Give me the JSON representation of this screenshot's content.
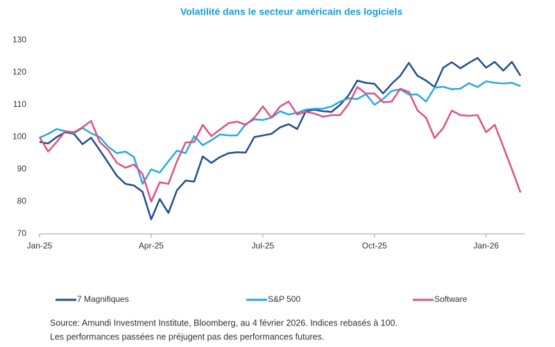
{
  "chart_data": {
    "type": "line",
    "title": "Volatilité dans le secteur américain des logiciels",
    "categories": [
      "Jan-25",
      null,
      null,
      null,
      null,
      null,
      null,
      null,
      null,
      null,
      null,
      null,
      null,
      "Apr-25",
      null,
      null,
      null,
      null,
      null,
      null,
      null,
      null,
      null,
      null,
      null,
      null,
      "Jul-25",
      null,
      null,
      null,
      null,
      null,
      null,
      null,
      null,
      null,
      null,
      null,
      null,
      "Oct-25",
      null,
      null,
      null,
      null,
      null,
      null,
      null,
      null,
      null,
      null,
      null,
      null,
      "Jan-26",
      null,
      null,
      null,
      null
    ],
    "series": [
      {
        "name": "7 Magnifiques",
        "color": "#1f4e8c",
        "values": [
          98.5,
          98,
          100,
          101.5,
          101,
          97.8,
          99.8,
          96,
          92,
          88,
          85.5,
          85,
          83,
          74.5,
          80.8,
          76.5,
          83.5,
          86.5,
          86.2,
          94,
          92,
          93.8,
          95,
          95.3,
          95.2,
          100,
          100.5,
          101,
          103,
          104,
          102.5,
          108,
          108.5,
          108,
          107.8,
          110,
          113,
          117.5,
          116.8,
          116.5,
          113.5,
          116.5,
          119,
          123,
          119,
          117.5,
          115.5,
          121.5,
          123.2,
          121.3,
          123,
          124.5,
          121.5,
          123.3,
          120.6,
          123.3,
          119
        ]
      },
      {
        "name": "S&P 500",
        "color": "#26a9e0",
        "values": [
          99.8,
          101,
          102.5,
          101.8,
          101.2,
          102.8,
          101.2,
          100,
          97,
          95,
          95.5,
          93.8,
          85.5,
          90,
          89,
          92.5,
          95.8,
          95,
          100.3,
          97.5,
          99,
          100.8,
          100.5,
          100.5,
          104,
          105.5,
          105.3,
          106,
          108,
          107,
          107.5,
          108.5,
          108.8,
          108.8,
          109.5,
          111,
          112,
          111.8,
          113.3,
          110,
          111.8,
          114.3,
          114.8,
          113.2,
          113.2,
          111,
          115.3,
          115.6,
          114.8,
          115,
          116.7,
          115.5,
          117.3,
          116.8,
          116.6,
          116.8,
          115.8
        ]
      },
      {
        "name": "Software",
        "color": "#e0507e",
        "values": [
          100,
          95.5,
          98.5,
          101.8,
          101.5,
          103,
          105,
          98.5,
          96,
          92,
          90.5,
          91.5,
          88.5,
          80,
          86,
          85.5,
          92.5,
          98.3,
          98.5,
          103.8,
          100.3,
          102.3,
          104.3,
          104.8,
          103.8,
          106,
          109.5,
          106,
          109.5,
          111,
          107,
          107.8,
          107.3,
          106.3,
          106.8,
          106.8,
          110.3,
          115.5,
          113.5,
          113.5,
          110.8,
          111,
          115,
          114,
          108.3,
          106,
          99.7,
          102.8,
          108.2,
          106.8,
          106.6,
          106.8,
          101.5,
          103.8,
          97,
          90,
          82.8
        ]
      }
    ],
    "ylim": [
      70,
      130
    ],
    "yticks": [
      70,
      80,
      90,
      100,
      110,
      120,
      130
    ],
    "source": "Source: Amundi Investment Institute, Bloomberg, au 4 février 2026. Indices rebasés à 100.",
    "note": "Les performances passées ne préjugent pas des performances futures."
  }
}
